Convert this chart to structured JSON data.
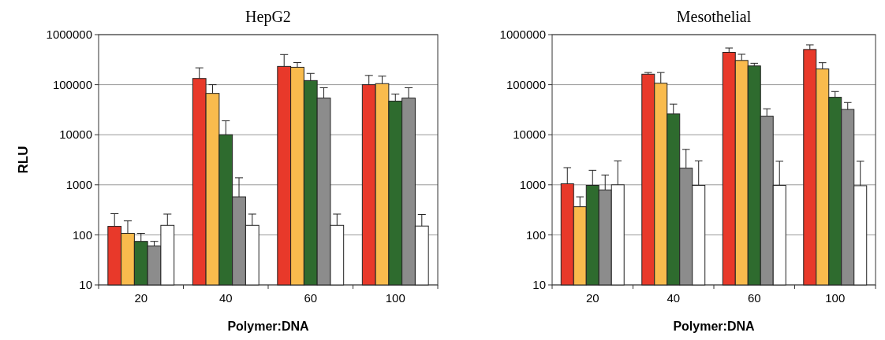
{
  "chart_data": [
    {
      "type": "bar",
      "title": "HepG2",
      "xlabel": "Polymer:DNA",
      "ylabel": "RLU",
      "categories": [
        "20",
        "40",
        "60",
        "100"
      ],
      "log": true,
      "ylim": [
        10,
        1000000
      ],
      "yticks": [
        10,
        100,
        1000,
        10000,
        100000,
        1000000
      ],
      "grid": "y",
      "series": [
        {
          "color": "#e8392a",
          "values": [
            148,
            133000,
            232000,
            100000
          ],
          "errors": [
            [
              148,
              265
            ],
            [
              133000,
              217000
            ],
            [
              232000,
              400000
            ],
            [
              100000,
              153000
            ]
          ]
        },
        {
          "color": "#f9bb4d",
          "values": [
            107,
            67000,
            223000,
            105000
          ],
          "errors": [
            [
              107,
              190
            ],
            [
              67000,
              100000
            ],
            [
              223000,
              277000
            ],
            [
              105000,
              148000
            ]
          ]
        },
        {
          "color": "#2e6b2e",
          "values": [
            74,
            10000,
            121000,
            47000
          ],
          "errors": [
            [
              74,
              107
            ],
            [
              10000,
              19000
            ],
            [
              121000,
              168000
            ],
            [
              47000,
              65000
            ]
          ]
        },
        {
          "color": "#8c8c8c",
          "values": [
            60,
            575,
            54000,
            54000
          ],
          "errors": [
            [
              60,
              74
            ],
            [
              575,
              1380
            ],
            [
              54000,
              87000
            ],
            [
              54000,
              87000
            ]
          ]
        },
        {
          "color": "#ffffff",
          "values": [
            155,
            155,
            155,
            150
          ],
          "errors": [
            [
              155,
              260
            ],
            [
              155,
              260
            ],
            [
              155,
              260
            ],
            [
              150,
              255
            ]
          ]
        }
      ]
    },
    {
      "type": "bar",
      "title": "Mesothelial",
      "xlabel": "Polymer:DNA",
      "categories": [
        "20",
        "40",
        "60",
        "100"
      ],
      "log": true,
      "ylim": [
        10,
        1000000
      ],
      "yticks": [
        10,
        100,
        1000,
        10000,
        100000,
        1000000
      ],
      "grid": "y",
      "series": [
        {
          "color": "#e8392a",
          "values": [
            1050,
            162000,
            443000,
            505000
          ],
          "errors": [
            [
              1050,
              2200
            ],
            [
              162000,
              175000
            ],
            [
              443000,
              540000
            ],
            [
              505000,
              625000
            ]
          ]
        },
        {
          "color": "#f9bb4d",
          "values": [
            365,
            107000,
            305000,
            206000
          ],
          "errors": [
            [
              365,
              575
            ],
            [
              107000,
              175000
            ],
            [
              305000,
              405000
            ],
            [
              206000,
              275000
            ]
          ]
        },
        {
          "color": "#2e6b2e",
          "values": [
            975,
            26000,
            237000,
            56000
          ],
          "errors": [
            [
              975,
              1950
            ],
            [
              26000,
              41000
            ],
            [
              237000,
              268000
            ],
            [
              56000,
              73000
            ]
          ]
        },
        {
          "color": "#8c8c8c",
          "values": [
            790,
            2150,
            23500,
            32000
          ],
          "errors": [
            [
              790,
              1570
            ],
            [
              2150,
              5100
            ],
            [
              23500,
              33000
            ],
            [
              32000,
              44000
            ]
          ]
        },
        {
          "color": "#ffffff",
          "values": [
            1000,
            975,
            975,
            960
          ],
          "errors": [
            [
              1000,
              3000
            ],
            [
              975,
              3000
            ],
            [
              975,
              2950
            ],
            [
              960,
              2950
            ]
          ]
        }
      ]
    }
  ]
}
